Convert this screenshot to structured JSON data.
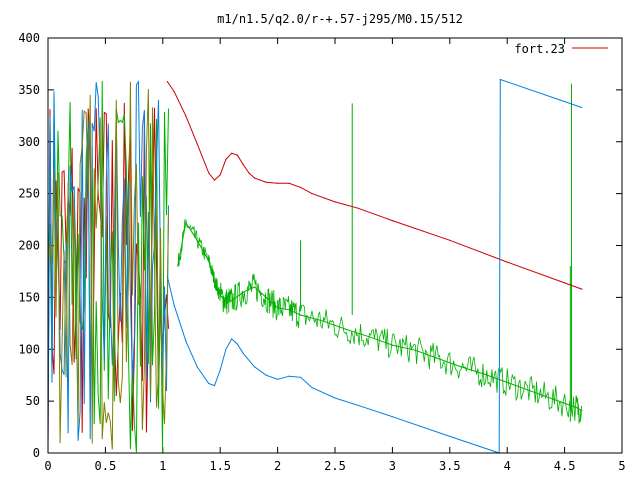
{
  "chart_data": {
    "type": "line",
    "title": "m1/n1.5/q2.0/r-+.57-j295/M0.15/512",
    "xlim": [
      0,
      5
    ],
    "ylim": [
      0,
      400
    ],
    "xticks": [
      "0",
      "0.5",
      "1",
      "1.5",
      "2",
      "2.5",
      "3",
      "3.5",
      "4",
      "4.5",
      "5"
    ],
    "yticks": [
      "0",
      "50",
      "100",
      "150",
      "200",
      "250",
      "300",
      "350",
      "400"
    ],
    "legend": {
      "label": "fort.23",
      "position": "top-right",
      "color": "#cc0000"
    },
    "series": [
      {
        "name": "fort.23",
        "color": "#cc0000",
        "x": [
          1.04,
          1.1,
          1.2,
          1.3,
          1.4,
          1.45,
          1.5,
          1.55,
          1.6,
          1.65,
          1.7,
          1.75,
          1.8,
          1.9,
          2.0,
          2.1,
          2.2,
          2.3,
          2.5,
          2.7,
          3.0,
          3.5,
          4.0,
          4.5,
          4.65
        ],
        "y": [
          358,
          348,
          325,
          298,
          270,
          263,
          268,
          283,
          289,
          287,
          278,
          270,
          265,
          261,
          260,
          260,
          256,
          250,
          242,
          236,
          224,
          205,
          184,
          164,
          158
        ]
      },
      {
        "name": "",
        "color": "#00b000",
        "x": [
          1.13,
          1.2,
          1.3,
          1.4,
          1.45,
          1.5,
          1.55,
          1.6,
          1.7,
          1.8,
          1.9,
          2.0,
          2.1,
          2.2,
          2.4,
          2.6,
          2.8,
          3.0,
          3.2,
          3.4,
          3.6,
          3.8,
          4.0,
          4.2,
          4.4,
          4.6,
          4.65
        ],
        "y": [
          180,
          222,
          205,
          185,
          167,
          152,
          146,
          147,
          155,
          160,
          150,
          140,
          138,
          133,
          127,
          119,
          112,
          104,
          99,
          91,
          83,
          76,
          68,
          60,
          52,
          44,
          41
        ]
      },
      {
        "name": "",
        "color": "#0080e0",
        "x": [
          1.04,
          1.1,
          1.2,
          1.3,
          1.4,
          1.45,
          1.5,
          1.55,
          1.6,
          1.65,
          1.7,
          1.8,
          1.9,
          2.0,
          2.1,
          2.2,
          2.3,
          2.5,
          2.7,
          3.0,
          3.5,
          3.93,
          3.94,
          4.65
        ],
        "y": [
          170,
          142,
          108,
          83,
          67,
          65,
          80,
          100,
          110,
          105,
          96,
          83,
          75,
          71,
          74,
          73,
          63,
          53,
          46,
          35,
          16,
          0,
          360,
          333
        ]
      }
    ]
  }
}
